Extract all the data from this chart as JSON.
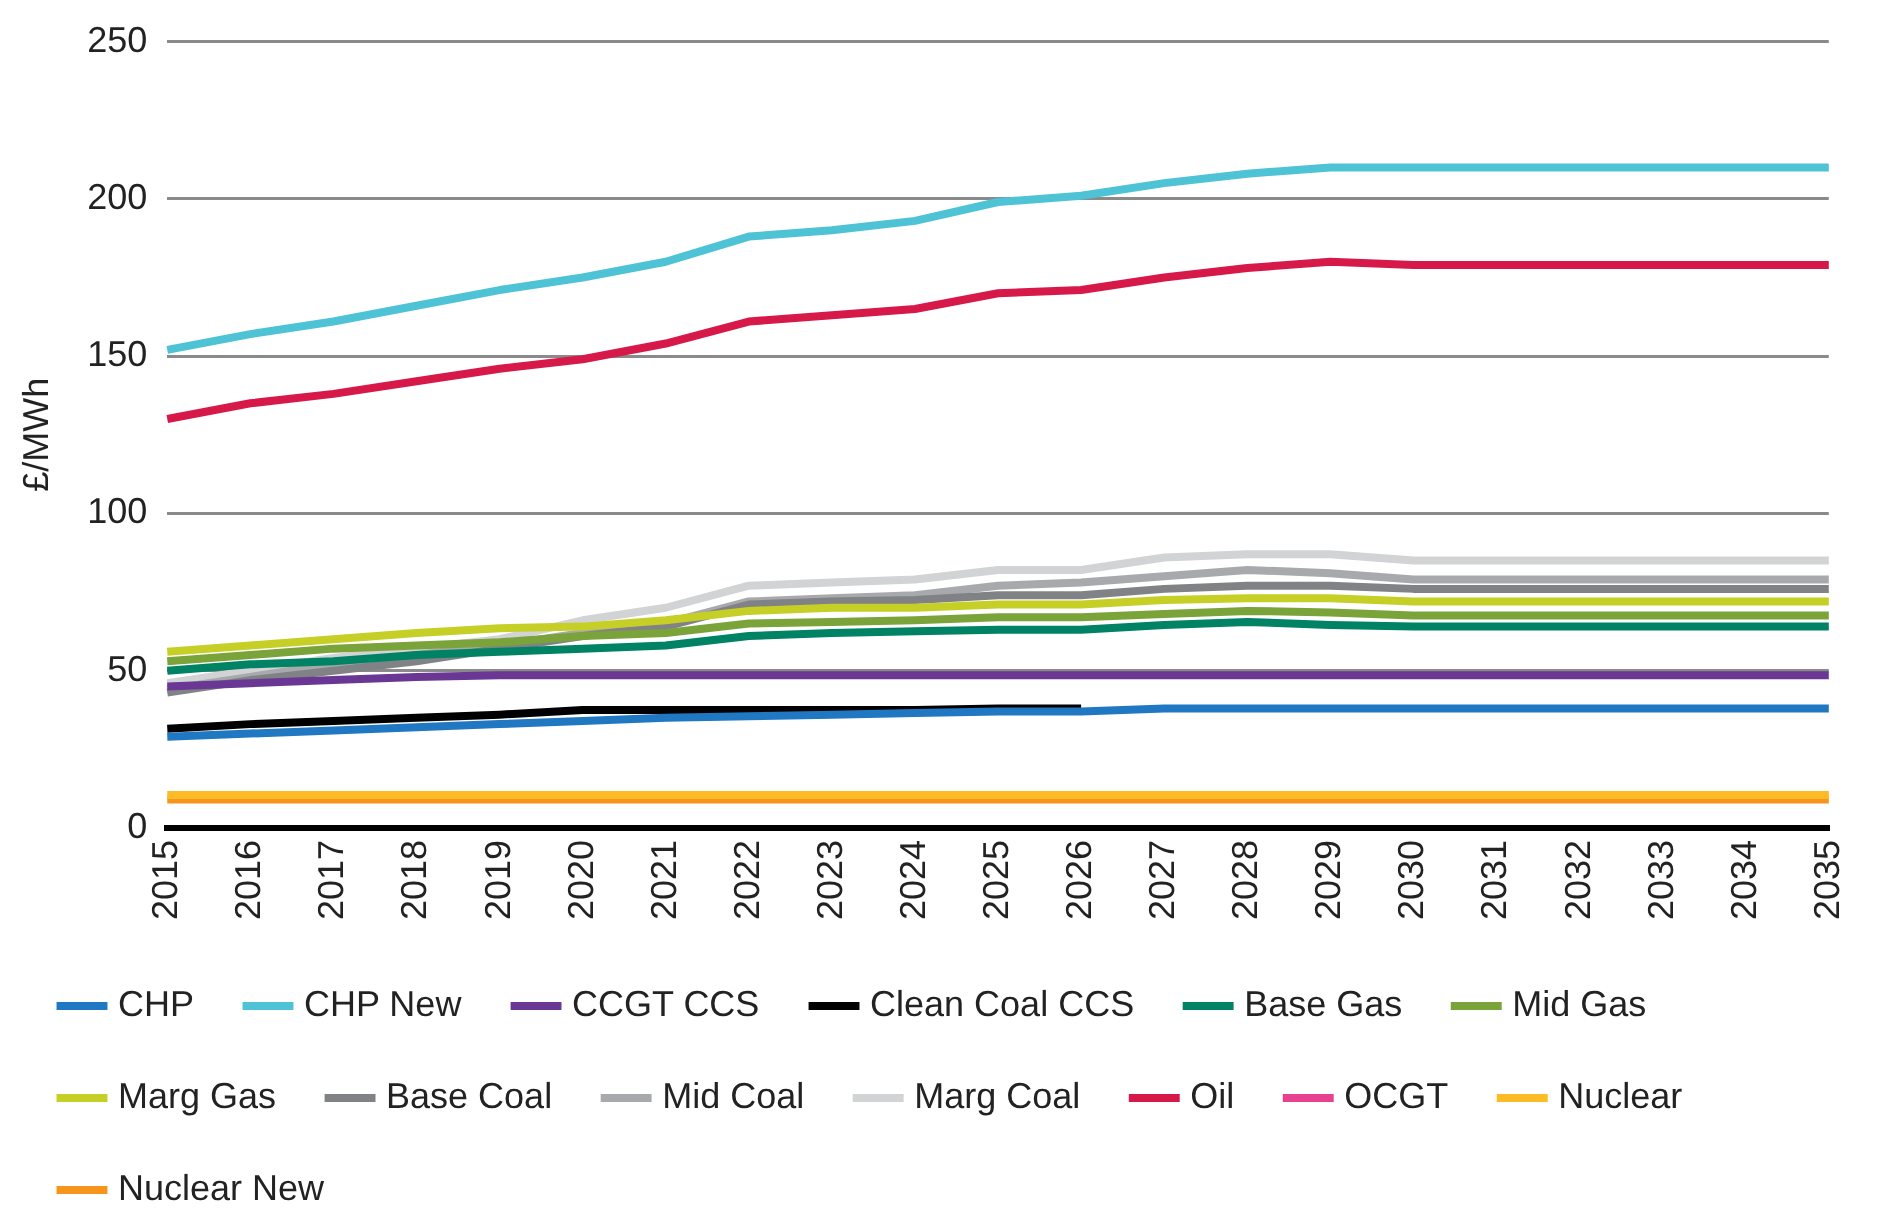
{
  "chart_data": {
    "type": "line",
    "ylabel": "£/MWh",
    "categories": [
      "2015",
      "2016",
      "2017",
      "2018",
      "2019",
      "2020",
      "2021",
      "2022",
      "2023",
      "2024",
      "2025",
      "2026",
      "2027",
      "2028",
      "2029",
      "2030",
      "2031",
      "2032",
      "2033",
      "2034",
      "2035"
    ],
    "ylim": [
      0,
      250
    ],
    "yticks": [
      0,
      50,
      100,
      150,
      200,
      250
    ],
    "grid": "y",
    "legend": "bottom",
    "marker": "none",
    "line_style": "solid",
    "series": [
      {
        "name": "CHP",
        "color": "#1f78c1",
        "values": [
          29,
          30,
          31,
          32,
          33,
          34,
          35,
          35.5,
          36,
          36.5,
          37,
          37,
          38,
          38,
          38,
          38,
          38,
          38,
          38,
          38,
          38
        ]
      },
      {
        "name": "CHP New",
        "color": "#4dc3d5",
        "values": [
          152,
          157,
          161,
          166,
          171,
          175,
          180,
          188,
          190,
          193,
          199,
          201,
          205,
          208,
          210,
          210,
          210,
          210,
          210,
          210,
          210
        ]
      },
      {
        "name": "CCGT CCS",
        "color": "#6a3894",
        "values": [
          45,
          46,
          47,
          48,
          48.5,
          48.5,
          48.5,
          48.5,
          48.5,
          48.5,
          48.5,
          48.5,
          48.5,
          48.5,
          48.5,
          48.5,
          48.5,
          48.5,
          48.5,
          48.5,
          48.5
        ]
      },
      {
        "name": "Clean Coal CCS",
        "color": "#000000",
        "values": [
          31.5,
          33,
          34,
          35,
          36,
          37.5,
          37.5,
          37.5,
          37.5,
          37.5,
          38,
          38,
          null,
          null,
          null,
          null,
          null,
          null,
          null,
          null,
          null
        ]
      },
      {
        "name": "Base Gas",
        "color": "#008264",
        "values": [
          50,
          52,
          53,
          55,
          56,
          57,
          58,
          61,
          62,
          62.5,
          63,
          63,
          64.5,
          65.5,
          64.5,
          64,
          64,
          64,
          64,
          64,
          64
        ]
      },
      {
        "name": "Mid Gas",
        "color": "#7aa33a",
        "values": [
          53,
          55,
          57,
          58,
          59,
          61,
          62,
          65,
          65.5,
          66,
          67,
          67,
          68,
          69,
          68.5,
          67.5,
          67.5,
          67.5,
          67.5,
          67.5,
          67.5
        ]
      },
      {
        "name": "Marg Gas",
        "color": "#c6cf26",
        "values": [
          56,
          58,
          60,
          62,
          63.5,
          64,
          66,
          69,
          70,
          70,
          71,
          71,
          72.5,
          73,
          73,
          72,
          72,
          72,
          72,
          72,
          72
        ]
      },
      {
        "name": "Base Coal",
        "color": "#808285",
        "values": [
          43,
          47,
          50,
          53,
          57,
          61,
          64,
          71,
          72,
          72.5,
          74,
          74,
          76,
          77,
          77,
          76,
          76,
          76,
          76,
          76,
          76
        ]
      },
      {
        "name": "Mid Coal",
        "color": "#a7a9ac",
        "values": [
          44,
          48,
          52,
          55,
          58,
          62,
          65,
          72,
          73,
          74,
          77,
          78,
          80,
          82,
          81,
          79,
          79,
          79,
          79,
          79,
          79
        ]
      },
      {
        "name": "Marg Coal",
        "color": "#d1d3d4",
        "values": [
          46,
          50,
          54,
          57,
          60,
          66,
          70,
          77,
          78,
          79,
          82,
          82,
          86,
          87,
          87,
          85,
          85,
          85,
          85,
          85,
          85
        ]
      },
      {
        "name": "Oil",
        "color": "#d7194a",
        "values": [
          130,
          135,
          138,
          142,
          146,
          149,
          154,
          161,
          163,
          165,
          170,
          171,
          175,
          178,
          180,
          179,
          179,
          179,
          179,
          179,
          179
        ]
      },
      {
        "name": "OCGT",
        "color": "#e8418f",
        "values": [
          null,
          null,
          null,
          null,
          null,
          null,
          null,
          null,
          null,
          null,
          null,
          null,
          null,
          null,
          null,
          null,
          null,
          null,
          null,
          null,
          null
        ]
      },
      {
        "name": "Nuclear",
        "color": "#fdbb25",
        "values": [
          10.5,
          10.5,
          10.5,
          10.5,
          10.5,
          10.5,
          10.5,
          10.5,
          10.5,
          10.5,
          10.5,
          10.5,
          10.5,
          10.5,
          10.5,
          10.5,
          10.5,
          10.5,
          10.5,
          10.5,
          10.5
        ]
      },
      {
        "name": "Nuclear New",
        "color": "#f7941d",
        "values": [
          9,
          9,
          9,
          9,
          9,
          9,
          9,
          9,
          9,
          9,
          9,
          9,
          9,
          9,
          9,
          9,
          9,
          9,
          9,
          9,
          9
        ]
      }
    ]
  }
}
